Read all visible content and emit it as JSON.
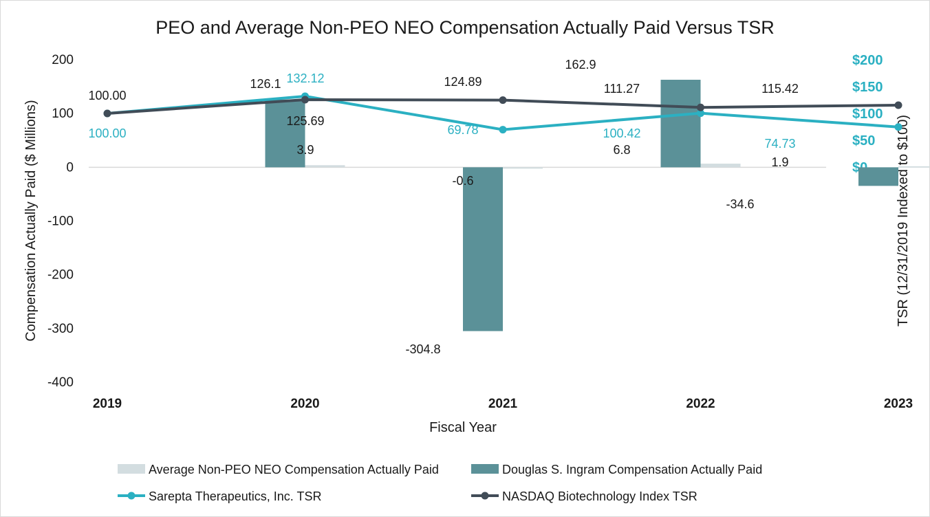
{
  "chart_data": {
    "type": "bar",
    "title": "PEO and Average Non-PEO NEO Compensation Actually Paid Versus TSR",
    "xlabel": "Fiscal Year",
    "ylabel": "Compensation Actually Paid ($ Millions)",
    "ylabel_right": "TSR (12/31/2019 Indexed to $100)",
    "categories": [
      "2019",
      "2020",
      "2021",
      "2022",
      "2023"
    ],
    "ylim": [
      -400,
      200
    ],
    "yticks": [
      {
        "value": 200,
        "label": "200"
      },
      {
        "value": 100,
        "label": "100"
      },
      {
        "value": 0,
        "label": "0"
      },
      {
        "value": -100,
        "label": "-100"
      },
      {
        "value": -200,
        "label": "-200"
      },
      {
        "value": -300,
        "label": "-300"
      },
      {
        "value": -400,
        "label": "-400"
      }
    ],
    "ylim_right": [
      0,
      200
    ],
    "yticks_right": [
      {
        "value": 200,
        "label": "$200"
      },
      {
        "value": 150,
        "label": "$150"
      },
      {
        "value": 100,
        "label": "$100"
      },
      {
        "value": 50,
        "label": "$50"
      },
      {
        "value": 0,
        "label": "$0"
      }
    ],
    "bar_series": [
      {
        "name": "Douglas S. Ingram Compensation Actually Paid",
        "color": "#5b9198",
        "values": [
          null,
          126.1,
          -304.8,
          162.9,
          -34.6
        ],
        "labels": [
          "",
          "126.1",
          "-304.8",
          "162.9",
          "-34.6"
        ]
      },
      {
        "name": "Average Non-PEO NEO Compensation Actually Paid",
        "color": "#d3dde0",
        "values": [
          null,
          3.9,
          -0.6,
          6.8,
          1.9
        ],
        "labels": [
          "",
          "3.9",
          "-0.6",
          "6.8",
          "1.9"
        ]
      }
    ],
    "line_series": [
      {
        "name": "Sarepta Therapeutics, Inc. TSR",
        "color": "#2bb0c2",
        "values": [
          100.0,
          132.12,
          69.78,
          100.42,
          74.73
        ],
        "labels": [
          "100.00",
          "132.12",
          "69.78",
          "100.42",
          "74.73"
        ]
      },
      {
        "name": "NASDAQ Biotechnology Index TSR",
        "color": "#414c57",
        "values": [
          100.0,
          125.69,
          124.89,
          111.27,
          115.42
        ],
        "labels": [
          "100.00",
          "125.69",
          "124.89",
          "111.27",
          "115.42"
        ]
      }
    ],
    "legend": [
      {
        "name": "Average Non-PEO NEO Compensation Actually Paid",
        "kind": "bar",
        "color": "#d3dde0"
      },
      {
        "name": "Douglas S. Ingram Compensation Actually Paid",
        "kind": "bar",
        "color": "#5b9198"
      },
      {
        "name": "Sarepta Therapeutics, Inc. TSR",
        "kind": "line",
        "color": "#2bb0c2"
      },
      {
        "name": "NASDAQ Biotechnology Index TSR",
        "kind": "line",
        "color": "#414c57"
      }
    ]
  }
}
